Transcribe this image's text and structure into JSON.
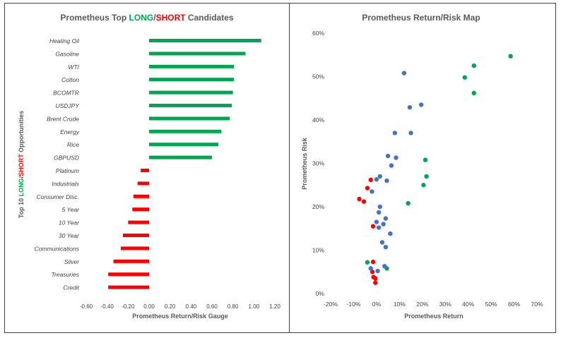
{
  "colors": {
    "long": "#00a550",
    "short": "#ff0000",
    "neutral": "#4472c4",
    "axis_text": "#404040",
    "title_text": "#595959"
  },
  "chart_data": [
    {
      "type": "bar",
      "orientation": "horizontal",
      "title": {
        "prefix": "Prometheus Top ",
        "long": "LONG",
        "sep": "/",
        "short": "SHORT",
        "suffix": " Candidates"
      },
      "ylabel": {
        "prefix": "Top 10 ",
        "long": "LONG",
        "sep": "/",
        "short": "SHORT",
        "suffix": " Opportunities"
      },
      "xlabel": "Prometheus Return/Risk Gauge",
      "xlim": [
        -0.6,
        1.2
      ],
      "xticks": [
        "-0.60",
        "-0.40",
        "-0.20",
        "0.00",
        "0.20",
        "0.40",
        "0.60",
        "0.80",
        "1.00",
        "1.20"
      ],
      "grid": false,
      "categories": [
        "Heating Oil",
        "Gasoline",
        "WTI",
        "Cotton",
        "BCOMTR",
        "USDJPY",
        "Brent Crude",
        "Energy",
        "Rice",
        "GBPUSD",
        "Platinum",
        "Industrials",
        "Consumer Disc.",
        "5 Year",
        "10 Year",
        "30 Year",
        "Communications",
        "Silver",
        "Treasuries",
        "Credit"
      ],
      "values": [
        1.07,
        0.92,
        0.81,
        0.81,
        0.8,
        0.79,
        0.77,
        0.69,
        0.66,
        0.6,
        -0.08,
        -0.11,
        -0.15,
        -0.16,
        -0.2,
        -0.25,
        -0.27,
        -0.34,
        -0.39,
        -0.39
      ]
    },
    {
      "type": "scatter",
      "title": "Prometheus Return/Risk Map",
      "xlabel": "Prometheus Return",
      "ylabel": "Prometheus Risk",
      "xlim": [
        -20,
        70
      ],
      "ylim": [
        0,
        60
      ],
      "xticks": [
        "-20%",
        "-10%",
        "0%",
        "10%",
        "20%",
        "30%",
        "40%",
        "50%",
        "60%",
        "70%"
      ],
      "yticks": [
        "0%",
        "10%",
        "20%",
        "30%",
        "40%",
        "50%",
        "60%"
      ],
      "grid": false,
      "series": [
        {
          "group": "long",
          "points": [
            [
              58.5,
              54.7
            ],
            [
              42.5,
              52.5
            ],
            [
              38.5,
              49.8
            ],
            [
              42.5,
              46.2
            ],
            [
              21.3,
              30.8
            ],
            [
              21.8,
              27.0
            ],
            [
              20.5,
              25.0
            ],
            [
              13.8,
              20.8
            ],
            [
              -4.0,
              7.2
            ],
            [
              4.5,
              5.8
            ]
          ]
        },
        {
          "group": "short",
          "points": [
            [
              -2.5,
              26.2
            ],
            [
              -4.0,
              24.3
            ],
            [
              -7.5,
              21.8
            ],
            [
              -5.5,
              21.2
            ],
            [
              -1.5,
              15.5
            ],
            [
              -1.5,
              7.3
            ],
            [
              -1.8,
              5.0
            ],
            [
              -1.3,
              3.8
            ],
            [
              -0.5,
              3.5
            ],
            [
              -0.5,
              2.5
            ]
          ]
        },
        {
          "group": "neutral",
          "points": [
            [
              12.0,
              50.8
            ],
            [
              19.5,
              43.5
            ],
            [
              14.5,
              42.9
            ],
            [
              8.0,
              37.0
            ],
            [
              15.0,
              37.0
            ],
            [
              5.0,
              31.7
            ],
            [
              8.5,
              31.3
            ],
            [
              6.5,
              29.5
            ],
            [
              1.5,
              27.0
            ],
            [
              0.0,
              26.3
            ],
            [
              4.5,
              26.0
            ],
            [
              -2.0,
              23.5
            ],
            [
              1.5,
              20.0
            ],
            [
              1.0,
              18.7
            ],
            [
              4.0,
              17.3
            ],
            [
              0.0,
              16.5
            ],
            [
              3.0,
              16.0
            ],
            [
              1.0,
              15.2
            ],
            [
              6.0,
              13.8
            ],
            [
              2.5,
              11.8
            ],
            [
              4.0,
              10.7
            ],
            [
              3.5,
              6.3
            ],
            [
              -2.5,
              5.8
            ],
            [
              0.5,
              5.2
            ]
          ]
        }
      ]
    }
  ]
}
